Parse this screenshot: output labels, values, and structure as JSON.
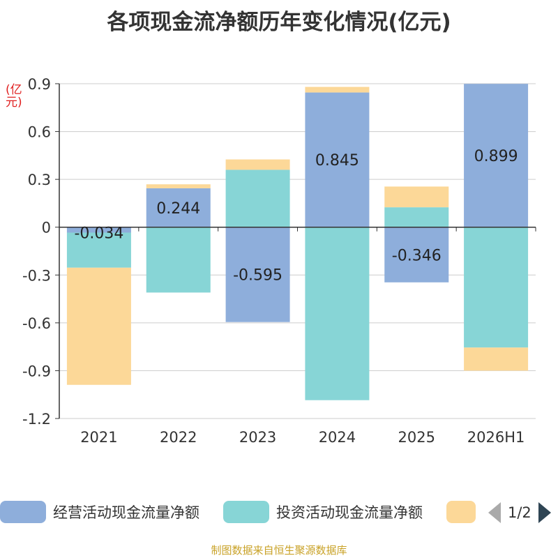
{
  "title": "各项现金流净额历年变化情况(亿元)",
  "unit_label": "(亿元)",
  "source": "制图数据来自恒生聚源数据库",
  "legend": {
    "items": [
      {
        "label": "经营活动现金流量净额",
        "color": "#8eaedb"
      },
      {
        "label": "投资活动现金流量净额",
        "color": "#87d5d6"
      },
      {
        "label": "",
        "color": "#fcd898"
      }
    ],
    "page": "1/2"
  },
  "chart_data": {
    "type": "bar",
    "stacked": true,
    "categories": [
      "2021",
      "2022",
      "2023",
      "2024",
      "2025",
      "2026H1"
    ],
    "ylim": [
      -1.2,
      0.9
    ],
    "yticks": [
      0.9,
      0.6,
      0.3,
      0,
      -0.3,
      -0.6,
      -0.9,
      -1.2
    ],
    "ytick_labels": [
      "0.9",
      "0.6",
      "0.3",
      "0",
      "-0.3",
      "-0.6",
      "-0.9",
      "-1.2"
    ],
    "grid": true,
    "series": [
      {
        "name": "经营活动现金流量净额",
        "color": "#8eaedb",
        "values": [
          -0.034,
          0.244,
          -0.595,
          0.845,
          -0.346,
          0.899
        ],
        "labels": [
          "-0.034",
          "0.244",
          "-0.595",
          "0.845",
          "-0.346",
          "0.899"
        ]
      },
      {
        "name": "投资活动现金流量净额",
        "color": "#87d5d6",
        "values": [
          -0.22,
          -0.41,
          0.36,
          -1.085,
          0.125,
          -0.755
        ]
      },
      {
        "name": "",
        "color": "#fcd898",
        "values": [
          -0.735,
          0.025,
          0.065,
          0.035,
          0.13,
          -0.145
        ]
      }
    ]
  }
}
